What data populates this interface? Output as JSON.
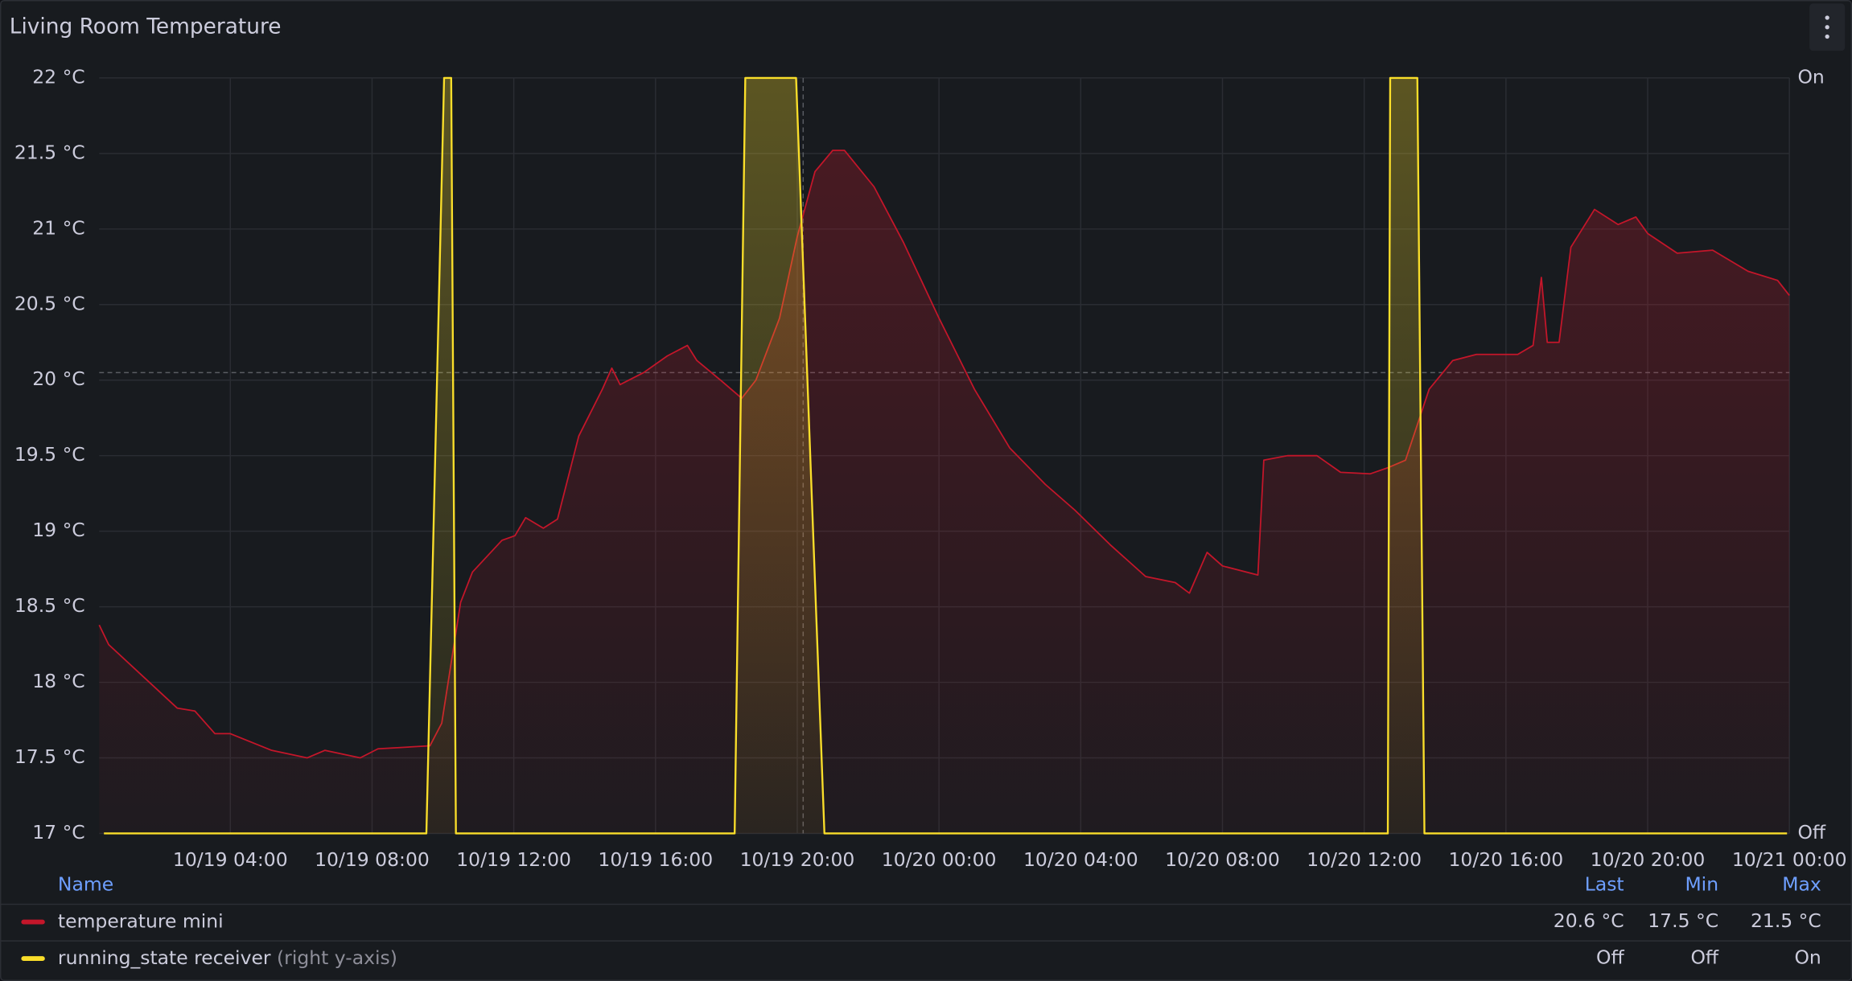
{
  "chart_data": {
    "type": "line",
    "title": "Living Room Temperature",
    "xlim": [
      "10/19 00:18",
      "10/21 00:00"
    ],
    "xticks": [
      "10/19 04:00",
      "10/19 08:00",
      "10/19 12:00",
      "10/19 16:00",
      "10/19 20:00",
      "10/20 00:00",
      "10/20 04:00",
      "10/20 08:00",
      "10/20 12:00",
      "10/20 16:00",
      "10/20 20:00",
      "10/21 00:00"
    ],
    "ylim": [
      17,
      22
    ],
    "yticks": [
      {
        "value": 17,
        "label": "17 °C"
      },
      {
        "value": 17.5,
        "label": "17.5 °C"
      },
      {
        "value": 18,
        "label": "18 °C"
      },
      {
        "value": 18.5,
        "label": "18.5 °C"
      },
      {
        "value": 19,
        "label": "19 °C"
      },
      {
        "value": 19.5,
        "label": "19.5 °C"
      },
      {
        "value": 20,
        "label": "20 °C"
      },
      {
        "value": 20.5,
        "label": "20.5 °C"
      },
      {
        "value": 21,
        "label": "21 °C"
      },
      {
        "value": 21.5,
        "label": "21.5 °C"
      },
      {
        "value": 22,
        "label": "22 °C"
      }
    ],
    "y2lim": [
      0,
      1
    ],
    "y2ticks": [
      {
        "value": 0,
        "label": "Off"
      },
      {
        "value": 1,
        "label": "On"
      }
    ],
    "grid": true,
    "threshold": 20.05,
    "marker_x": "10/19 20:10",
    "legend": {
      "header": "Name",
      "columns": [
        "Last",
        "Min",
        "Max"
      ]
    },
    "series": [
      {
        "name": "temperature mini",
        "color": "#c4162a",
        "x": [
          "10/19 00:18",
          "10/19 00:34",
          "10/19 02:30",
          "10/19 03:00",
          "10/19 03:34",
          "10/19 04:00",
          "10/19 05:10",
          "10/19 06:10",
          "10/19 06:40",
          "10/19 07:40",
          "10/19 08:10",
          "10/19 09:38",
          "10/19 09:58",
          "10/19 10:30",
          "10/19 10:50",
          "10/19 11:40",
          "10/19 12:02",
          "10/19 12:20",
          "10/19 12:50",
          "10/19 13:14",
          "10/19 13:50",
          "10/19 14:30",
          "10/19 14:46",
          "10/19 15:00",
          "10/19 15:40",
          "10/19 16:20",
          "10/19 16:54",
          "10/19 17:10",
          "10/19 17:50",
          "10/19 18:26",
          "10/19 18:50",
          "10/19 19:30",
          "10/19 20:00",
          "10/19 20:30",
          "10/19 21:00",
          "10/19 21:20",
          "10/19 22:10",
          "10/19 23:00",
          "10/20 00:00",
          "10/20 01:00",
          "10/20 02:00",
          "10/20 03:00",
          "10/20 03:50",
          "10/20 04:50",
          "10/20 05:50",
          "10/20 06:40",
          "10/20 07:04",
          "10/20 07:34",
          "10/20 08:00",
          "10/20 09:00",
          "10/20 09:10",
          "10/20 09:50",
          "10/20 10:40",
          "10/20 11:20",
          "10/20 12:10",
          "10/20 12:40",
          "10/20 13:10",
          "10/20 13:50",
          "10/20 14:30",
          "10/20 15:10",
          "10/20 16:20",
          "10/20 16:46",
          "10/20 17:00",
          "10/20 17:10",
          "10/20 17:30",
          "10/20 17:50",
          "10/20 18:30",
          "10/20 19:10",
          "10/20 19:40",
          "10/20 20:00",
          "10/20 20:50",
          "10/20 21:50",
          "10/20 22:50",
          "10/20 23:40",
          "10/21 00:00"
        ],
        "values": [
          18.38,
          18.25,
          17.83,
          17.81,
          17.66,
          17.66,
          17.55,
          17.5,
          17.55,
          17.5,
          17.56,
          17.58,
          17.73,
          18.53,
          18.73,
          18.94,
          18.97,
          19.09,
          19.02,
          19.08,
          19.63,
          19.94,
          20.08,
          19.97,
          20.05,
          20.16,
          20.23,
          20.13,
          20.0,
          19.88,
          20.0,
          20.41,
          20.95,
          21.38,
          21.52,
          21.52,
          21.28,
          20.91,
          20.41,
          19.94,
          19.55,
          19.31,
          19.14,
          18.91,
          18.7,
          18.66,
          18.59,
          18.86,
          18.77,
          18.71,
          19.47,
          19.5,
          19.5,
          19.39,
          19.38,
          19.42,
          19.47,
          19.94,
          20.13,
          20.17,
          20.17,
          20.23,
          20.68,
          20.25,
          20.25,
          20.88,
          21.13,
          21.03,
          21.08,
          20.97,
          20.84,
          20.86,
          20.72,
          20.66,
          20.56
        ],
        "legend_values": [
          "20.6 °C",
          "17.5 °C",
          "21.5 °C"
        ]
      },
      {
        "name": "running_state receiver",
        "axis_note": "(right y-axis)",
        "color": "#fade2a",
        "axis": "y2",
        "x": [
          "10/19 00:26",
          "10/19 09:32",
          "10/19 10:02",
          "10/19 10:14",
          "10/19 10:22",
          "10/19 18:14",
          "10/19 18:32",
          "10/19 19:58",
          "10/19 20:46",
          "10/20 12:40",
          "10/20 12:44",
          "10/20 13:30",
          "10/20 13:42",
          "10/20 23:56"
        ],
        "values": [
          0,
          0,
          1,
          1,
          0,
          0,
          1,
          1,
          0,
          0,
          1,
          1,
          0,
          0
        ],
        "legend_values": [
          "Off",
          "Off",
          "On"
        ]
      }
    ]
  }
}
